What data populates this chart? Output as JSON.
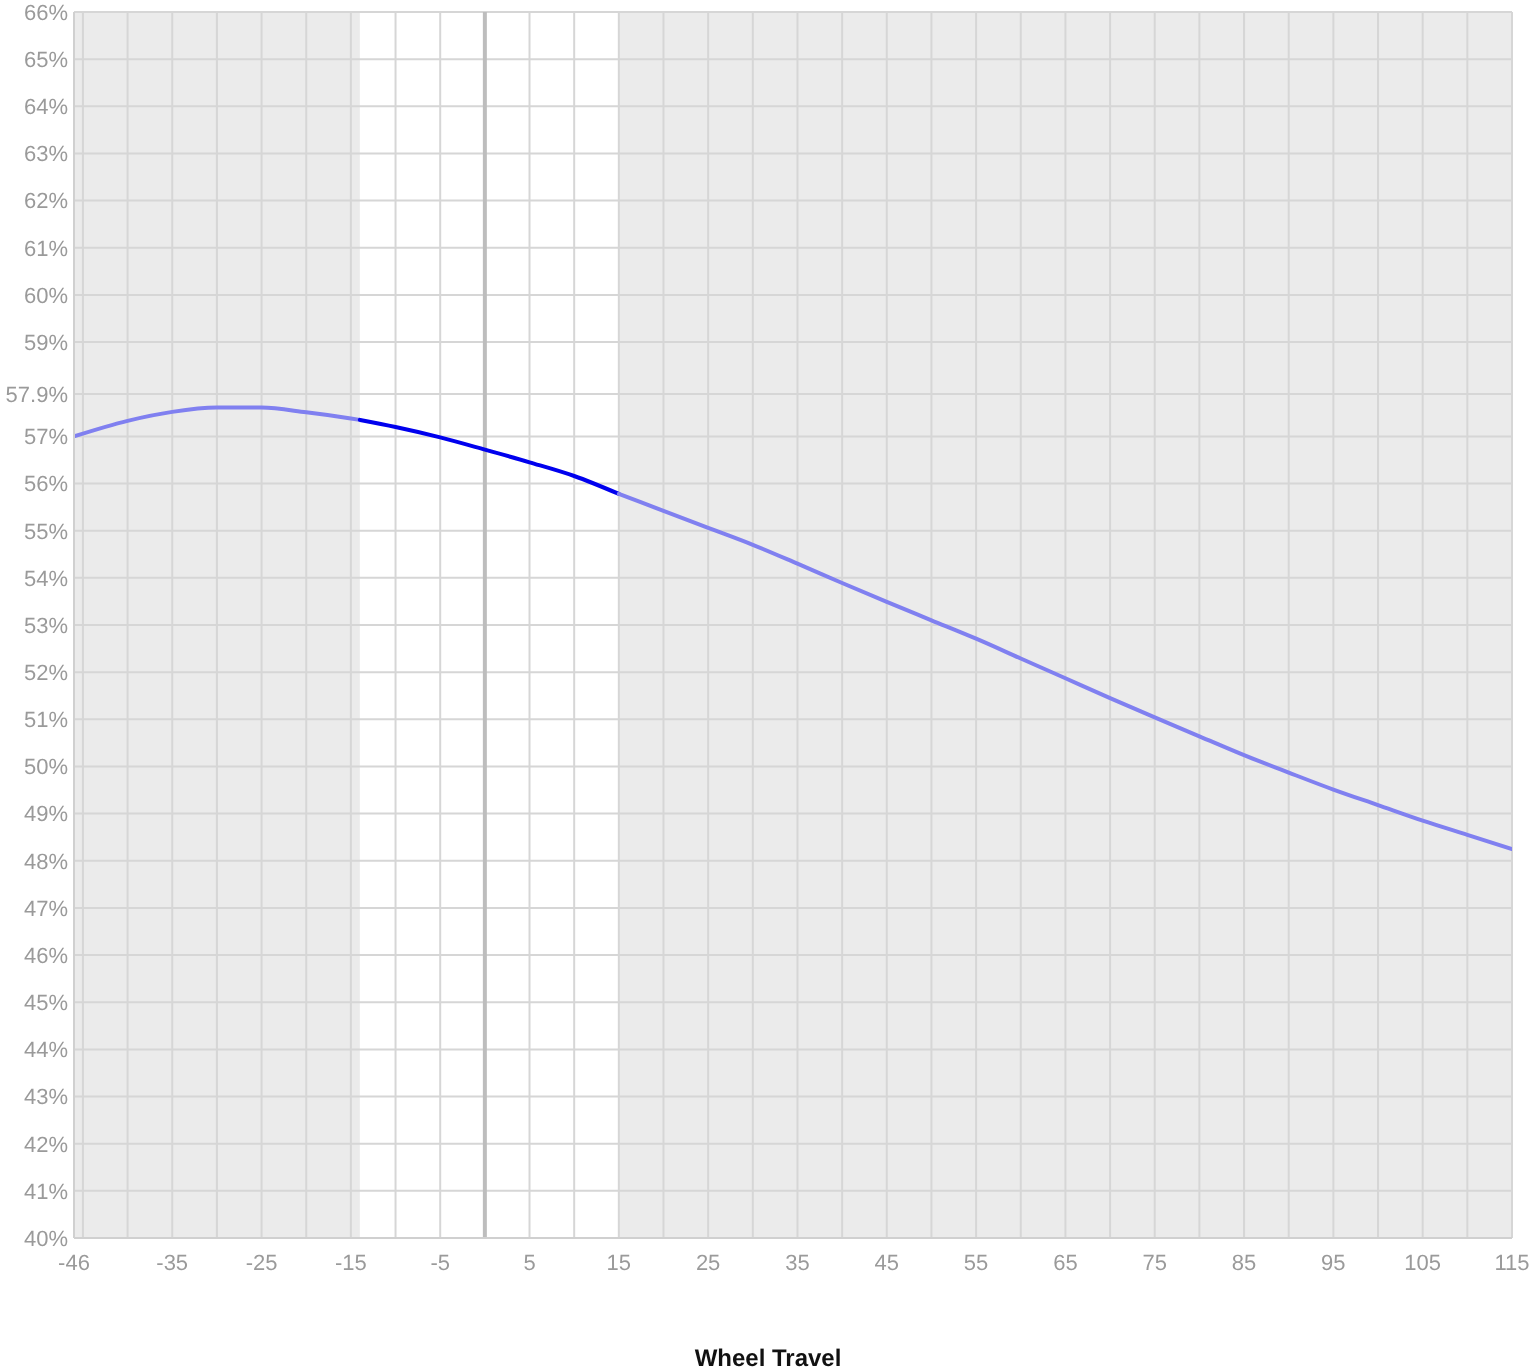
{
  "chart_data": {
    "type": "line",
    "xlabel": "Wheel Travel",
    "xlim": [
      -46,
      115
    ],
    "xticks": [
      -46,
      {
        "value": -45,
        "label": null
      },
      {
        "value": -40,
        "label": null
      },
      -35,
      {
        "value": -30,
        "label": null
      },
      -25,
      {
        "value": -20,
        "label": null
      },
      -15,
      {
        "value": -10,
        "label": null
      },
      -5,
      {
        "value": 0,
        "label": null
      },
      5,
      {
        "value": 10,
        "label": null
      },
      15,
      {
        "value": 20,
        "label": null
      },
      25,
      {
        "value": 30,
        "label": null
      },
      35,
      {
        "value": 40,
        "label": null
      },
      45,
      {
        "value": 50,
        "label": null
      },
      55,
      {
        "value": 60,
        "label": null
      },
      65,
      {
        "value": 70,
        "label": null
      },
      75,
      {
        "value": 80,
        "label": null
      },
      85,
      {
        "value": 90,
        "label": null
      },
      95,
      {
        "value": 100,
        "label": null
      },
      105,
      {
        "value": 110,
        "label": null
      },
      115
    ],
    "ylim": [
      40,
      66
    ],
    "yticks": [
      {
        "value": 40,
        "label": "40%"
      },
      {
        "value": 41,
        "label": "41%"
      },
      {
        "value": 42,
        "label": "42%"
      },
      {
        "value": 43,
        "label": "43%"
      },
      {
        "value": 44,
        "label": "44%"
      },
      {
        "value": 45,
        "label": "45%"
      },
      {
        "value": 46,
        "label": "46%"
      },
      {
        "value": 47,
        "label": "47%"
      },
      {
        "value": 48,
        "label": "48%"
      },
      {
        "value": 49,
        "label": "49%"
      },
      {
        "value": 50,
        "label": "50%"
      },
      {
        "value": 51,
        "label": "51%"
      },
      {
        "value": 52,
        "label": "52%"
      },
      {
        "value": 53,
        "label": "53%"
      },
      {
        "value": 54,
        "label": "54%"
      },
      {
        "value": 55,
        "label": "55%"
      },
      {
        "value": 56,
        "label": "56%"
      },
      {
        "value": 57,
        "label": "57%"
      },
      {
        "value": 57.9,
        "label": "57.9%"
      },
      {
        "value": 59,
        "label": "59%"
      },
      {
        "value": 60,
        "label": "60%"
      },
      {
        "value": 61,
        "label": "61%"
      },
      {
        "value": 62,
        "label": "62%"
      },
      {
        "value": 63,
        "label": "63%"
      },
      {
        "value": 64,
        "label": "64%"
      },
      {
        "value": 65,
        "label": "65%"
      },
      {
        "value": 66,
        "label": "66%"
      }
    ],
    "grid": true,
    "marker": "none",
    "bands": [
      {
        "axis": "x",
        "from": -46,
        "to": -14,
        "color": "#ebebeb"
      },
      {
        "axis": "x",
        "from": 15,
        "to": 115,
        "color": "#ebebeb"
      }
    ],
    "ref_lines": [
      {
        "axis": "x",
        "value": 0,
        "color": "#bdbdbd"
      }
    ],
    "series": [
      {
        "color": "#8080f0",
        "x": [
          -46,
          -40,
          -35,
          -30,
          -25,
          -20,
          -15,
          -14
        ],
        "values": [
          57.0,
          57.33,
          57.52,
          57.61,
          57.61,
          57.51,
          57.38,
          57.35
        ]
      },
      {
        "color": "#0000ee",
        "x": [
          -14,
          -10,
          -5,
          0,
          5,
          10,
          15
        ],
        "values": [
          57.35,
          57.2,
          56.98,
          56.72,
          56.45,
          56.16,
          55.78
        ]
      },
      {
        "color": "#8080f0",
        "x": [
          15,
          20,
          25,
          30,
          35,
          40,
          45,
          50,
          55,
          60,
          65,
          70,
          75,
          80,
          85,
          90,
          95,
          100,
          105,
          110,
          115
        ],
        "values": [
          55.78,
          55.42,
          55.06,
          54.7,
          54.3,
          53.89,
          53.49,
          53.1,
          52.71,
          52.29,
          51.87,
          51.45,
          51.04,
          50.64,
          50.24,
          49.87,
          49.51,
          49.18,
          48.85,
          48.55,
          48.25
        ]
      }
    ]
  }
}
